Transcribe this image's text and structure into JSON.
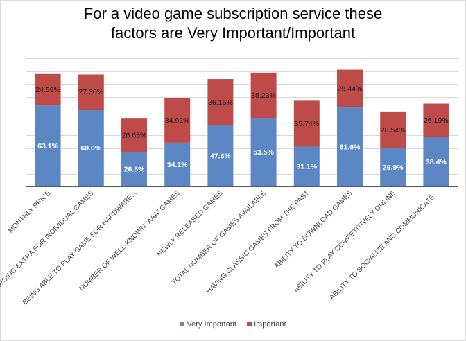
{
  "chart_data": {
    "type": "bar",
    "stacked": true,
    "title_lines": [
      "For a video game subscription service these",
      "factors are Very Important/Important"
    ],
    "categories": [
      "MONTHLY PRICE",
      "NOT CHARGING EXTRA FOR INDIVIDUAL GAMES",
      "BEING ABLE TO PLAY GAME FOR HARDWARE...",
      "NUMBER OF WELL-KNOWN “AAA” GAMES",
      "NEWLY RELEASED GAMES",
      "TOTAL NUMBER OF GAMES AVAILABLE",
      "HAVING CLASSIC GAMES FROM THE PAST",
      "ABILITY TO DOWNLOAD GAMES",
      "ABILITY TO PLAY COMPETITIVELY ONLINE",
      "ABILITY TO SOCIALIZE AND COMMUNICATE..."
    ],
    "series": [
      {
        "name": "Very Important",
        "color": "#5b87c5",
        "values": [
          63.1,
          60.0,
          26.8,
          34.1,
          47.6,
          53.5,
          31.1,
          61.6,
          29.9,
          38.4
        ],
        "labels": [
          "63.1%",
          "60.0%",
          "26.8%",
          "34.1%",
          "47.6%",
          "53.5%",
          "31.1%",
          "61.6%",
          "29.9%",
          "38.4%"
        ]
      },
      {
        "name": "Important",
        "color": "#be4b48",
        "values": [
          24.59,
          27.3,
          26.65,
          34.92,
          36.16,
          35.23,
          35.74,
          29.44,
          28.54,
          26.19
        ],
        "labels": [
          "24.59%",
          "27.30%",
          "26.65%",
          "34.92%",
          "36.16%",
          "35.23%",
          "35.74%",
          "29.44%",
          "28.54%",
          "26.19%"
        ]
      }
    ],
    "ylim": [
      0,
      100
    ],
    "y_step": 10,
    "grid": true,
    "legend_position": "bottom"
  }
}
